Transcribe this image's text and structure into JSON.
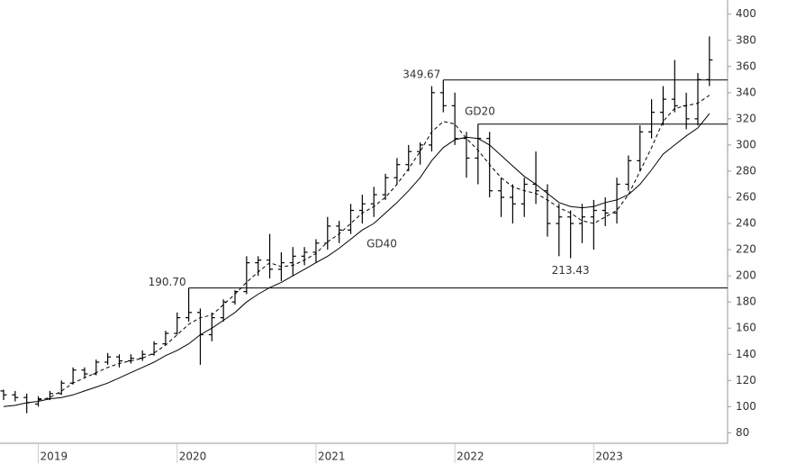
{
  "chart_data": {
    "type": "ohlc",
    "categories": [
      null,
      null,
      null,
      "2019",
      null,
      null,
      null,
      null,
      null,
      null,
      null,
      null,
      null,
      null,
      null,
      "2020",
      null,
      null,
      null,
      null,
      null,
      null,
      null,
      null,
      null,
      null,
      null,
      "2021",
      null,
      null,
      null,
      null,
      null,
      null,
      null,
      null,
      null,
      null,
      null,
      "2022",
      null,
      null,
      null,
      null,
      null,
      null,
      null,
      null,
      null,
      null,
      null,
      "2023",
      null,
      null,
      null,
      null,
      null,
      null,
      null,
      null,
      null,
      null
    ],
    "open": [
      112,
      109,
      107,
      102,
      106,
      110,
      118,
      128,
      125,
      134,
      138,
      135,
      137,
      140,
      148,
      156,
      168,
      172,
      155,
      168,
      180,
      188,
      210,
      212,
      205,
      210,
      215,
      218,
      225,
      238,
      235,
      250,
      255,
      262,
      275,
      285,
      295,
      300,
      340,
      330,
      305,
      290,
      305,
      265,
      260,
      255,
      270,
      265,
      240,
      245,
      240,
      245,
      250,
      248,
      270,
      288,
      310,
      325,
      335,
      330,
      320,
      350
    ],
    "high": [
      113,
      112,
      110,
      108,
      112,
      120,
      130,
      130,
      136,
      141,
      140,
      140,
      143,
      150,
      158,
      172,
      190.7,
      175,
      172,
      182,
      189,
      215,
      215,
      232,
      218,
      222,
      222,
      228,
      245,
      242,
      255,
      262,
      268,
      278,
      290,
      300,
      302,
      345,
      349.67,
      340,
      310,
      316,
      310,
      275,
      270,
      275,
      295,
      270,
      255,
      250,
      255,
      258,
      260,
      275,
      292,
      315,
      335,
      345,
      365,
      340,
      355,
      383
    ],
    "low": [
      105,
      104,
      95,
      100,
      105,
      109,
      117,
      122,
      124,
      132,
      130,
      133,
      135,
      139,
      147,
      155,
      165,
      132,
      150,
      165,
      178,
      186,
      200,
      198,
      196,
      200,
      208,
      210,
      220,
      225,
      232,
      240,
      245,
      258,
      270,
      280,
      285,
      295,
      325,
      300,
      275,
      270,
      260,
      245,
      240,
      245,
      255,
      230,
      215,
      213.43,
      225,
      220,
      238,
      240,
      265,
      280,
      305,
      315,
      325,
      312,
      315,
      345
    ],
    "close": [
      109,
      107,
      103,
      106,
      110,
      118,
      128,
      125,
      134,
      138,
      135,
      137,
      140,
      148,
      156,
      168,
      172,
      155,
      168,
      180,
      188,
      210,
      212,
      205,
      210,
      215,
      218,
      225,
      238,
      235,
      250,
      255,
      262,
      275,
      285,
      295,
      300,
      340,
      330,
      305,
      290,
      305,
      265,
      260,
      255,
      270,
      265,
      240,
      245,
      240,
      245,
      250,
      248,
      270,
      288,
      310,
      325,
      335,
      330,
      320,
      350,
      365
    ],
    "series": [
      {
        "name": "GD20",
        "dash": true,
        "color": "#000000",
        "values": [
          null,
          null,
          null,
          105,
          107,
          112,
          118,
          122,
          126,
          130,
          133,
          135,
          137,
          141,
          147,
          155,
          163,
          168,
          170,
          178,
          186,
          195,
          203,
          210,
          207,
          208,
          212,
          217,
          226,
          232,
          240,
          248,
          253,
          260,
          270,
          282,
          295,
          310,
          318,
          316,
          305,
          296,
          285,
          275,
          268,
          265,
          263,
          258,
          252,
          248,
          242,
          240,
          245,
          250,
          262,
          280,
          298,
          318,
          328,
          330,
          332,
          338
        ]
      },
      {
        "name": "GD40",
        "dash": false,
        "color": "#000000",
        "values": [
          100,
          101,
          103,
          104,
          106,
          107,
          109,
          112,
          115,
          118,
          122,
          126,
          130,
          134,
          139,
          143,
          148,
          155,
          160,
          166,
          172,
          180,
          186,
          191,
          195,
          200,
          205,
          210,
          215,
          221,
          228,
          235,
          240,
          248,
          256,
          265,
          275,
          288,
          298,
          304,
          306,
          305,
          300,
          292,
          284,
          276,
          270,
          263,
          256,
          253,
          252,
          253,
          256,
          258,
          262,
          270,
          281,
          293,
          300,
          307,
          313,
          324
        ]
      }
    ],
    "levels": [
      {
        "value": 349.67,
        "label": "349.67",
        "line": true
      },
      {
        "value": 316,
        "line": true
      },
      {
        "value": 190.7,
        "label": "190.70",
        "line": true
      },
      {
        "value": 213.43,
        "label": "213.43",
        "line": false
      }
    ],
    "color": "#000000",
    "ylim": [
      72,
      406
    ],
    "yticks": [
      80,
      100,
      120,
      140,
      160,
      180,
      200,
      220,
      240,
      260,
      280,
      300,
      320,
      340,
      360,
      380,
      400
    ]
  }
}
